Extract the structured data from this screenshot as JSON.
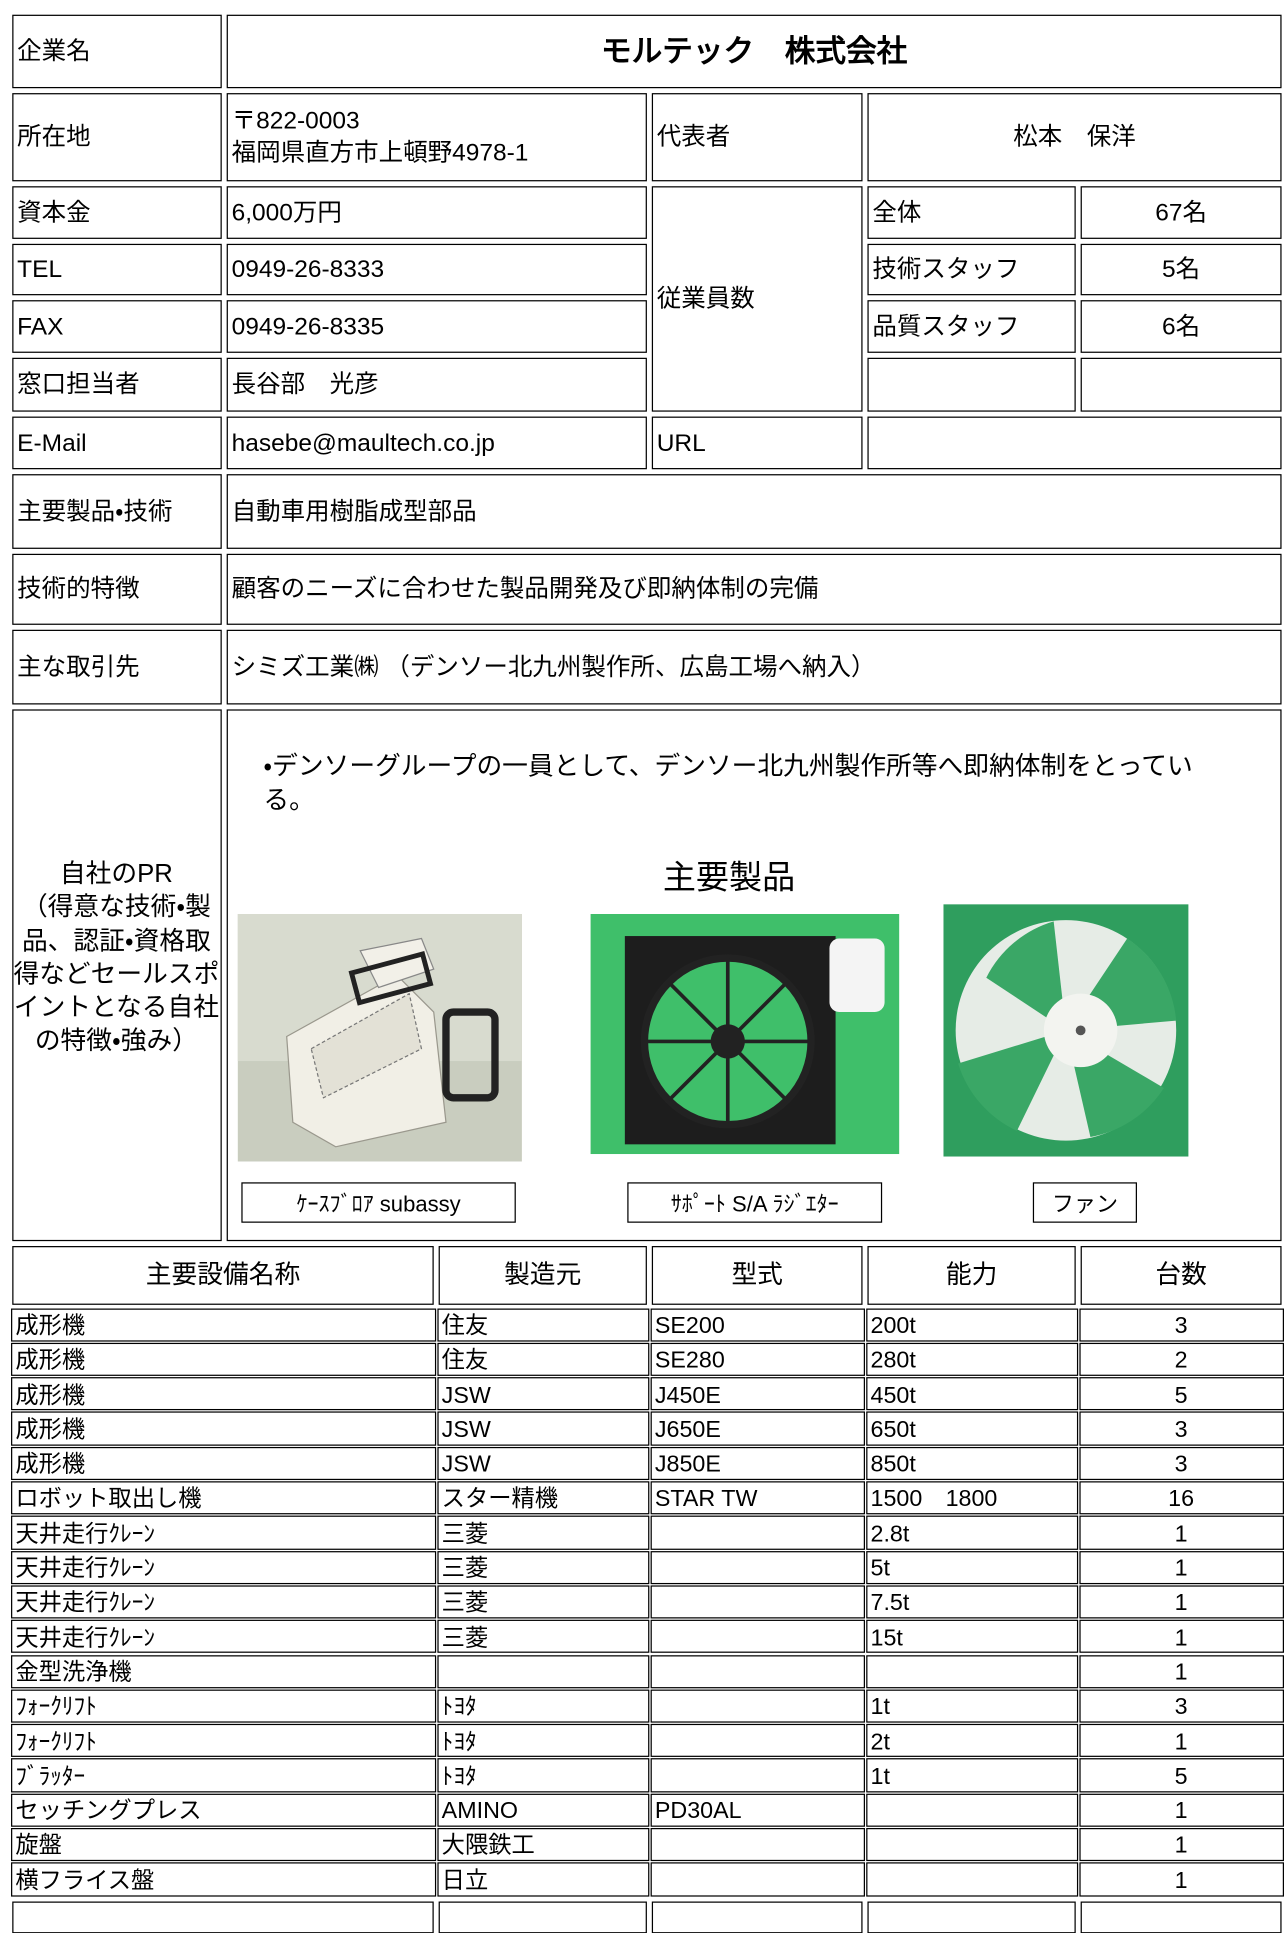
{
  "company": {
    "name_label": "企業名",
    "name": "モルテック　株式会社",
    "address_label": "所在地",
    "postal": "〒822-0003",
    "address": "福岡県直方市上頓野4978-1",
    "representative_label": "代表者",
    "representative": "松本　保洋",
    "capital_label": "資本金",
    "capital": "6,000万円",
    "tel_label": "TEL",
    "tel": "0949-26-8333",
    "fax_label": "FAX",
    "fax": "0949-26-8335",
    "contact_label": "窓口担当者",
    "contact": "長谷部　光彦",
    "email_label": "E-Mail",
    "email": "hasebe@maultech.co.jp",
    "url_label": "URL",
    "employees_label": "従業員数",
    "employees": [
      {
        "label": "全体",
        "value": "67名"
      },
      {
        "label": "技術スタッフ",
        "value": "5名"
      },
      {
        "label": "品質スタッフ",
        "value": "6名"
      }
    ],
    "products_label": "主要製品・技術",
    "products": "自動車用樹脂成型部品",
    "features_label": "技術的特徴",
    "features": "顧客のニーズに合わせた製品開発及び即納体制の完備",
    "clients_label": "主な取引先",
    "clients": "シミズ工業㈱ （デンソー北九州製作所、広島工場へ納入）",
    "pr_label_title": "自社のPR",
    "pr_label_detail": "（得意な技術・製品、認証・資格取得などセールスポイントとなる自社の特徴・強み）",
    "pr_text": "・デンソーグループの一員として、デンソー北九州製作所等へ即納体制をとっている。",
    "pr_heading": "主要製品",
    "product_captions": [
      "ｹｰｽﾌﾞﾛｱ subassy",
      "ｻﾎﾟｰﾄ S/A ﾗｼﾞｴﾀｰ",
      "ファン"
    ]
  },
  "equipment": {
    "header": [
      "主要設備名称",
      "製造元",
      "型式",
      "能力",
      "台数"
    ],
    "rows": [
      [
        "成形機",
        "住友",
        "SE200",
        "200t",
        3
      ],
      [
        "成形機",
        "住友",
        "SE280",
        "280t",
        2
      ],
      [
        "成形機",
        "JSW",
        "J450E",
        "450t",
        5
      ],
      [
        "成形機",
        "JSW",
        "J650E",
        "650t",
        3
      ],
      [
        "成形機",
        "JSW",
        "J850E",
        "850t",
        3
      ],
      [
        "ロボット取出し機",
        "スター精機",
        "STAR TW",
        "1500　1800",
        16
      ],
      [
        "天井走行ｸﾚｰﾝ",
        "三菱",
        null,
        "2.8t",
        1
      ],
      [
        "天井走行ｸﾚｰﾝ",
        "三菱",
        null,
        "5t",
        1
      ],
      [
        "天井走行ｸﾚｰﾝ",
        "三菱",
        null,
        "7.5t",
        1
      ],
      [
        "天井走行ｸﾚｰﾝ",
        "三菱",
        null,
        "15t",
        1
      ],
      [
        "金型洗浄機",
        null,
        null,
        null,
        1
      ],
      [
        "ﾌｫｰｸﾘﾌﾄ",
        "ﾄﾖﾀ",
        null,
        "1t",
        3
      ],
      [
        "ﾌｫｰｸﾘﾌﾄ",
        "ﾄﾖﾀ",
        null,
        "2t",
        1
      ],
      [
        "ﾌﾞﾗｯﾀｰ",
        "ﾄﾖﾀ",
        null,
        "1t",
        5
      ],
      [
        "セッチングプレス",
        "AMINO",
        "PD30AL",
        null,
        1
      ],
      [
        "旋盤",
        "大隈鉄工",
        null,
        null,
        1
      ],
      [
        "横フライス盤",
        "日立",
        null,
        null,
        1
      ]
    ]
  }
}
